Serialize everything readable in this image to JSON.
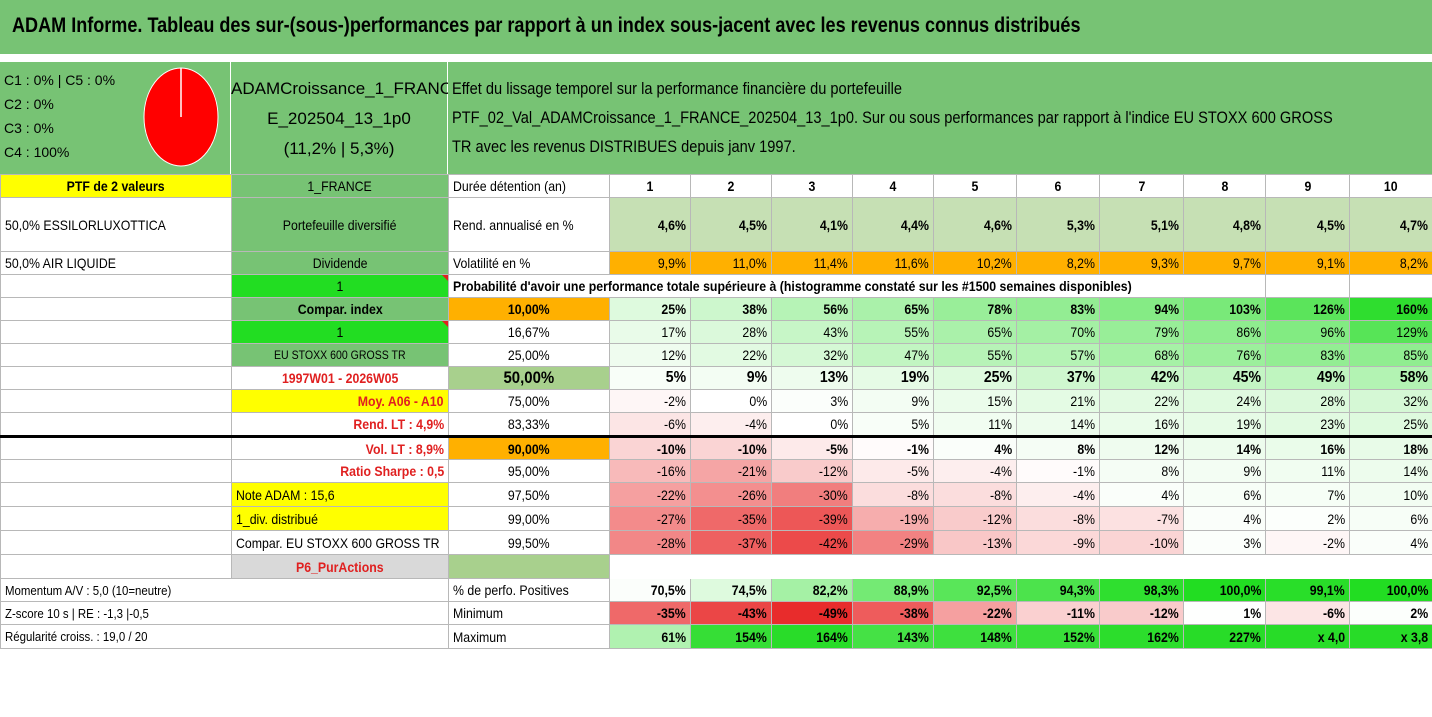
{
  "title": "ADAM Informe. Tableau des sur-(sous-)performances par rapport à un index sous-jacent avec les revenus connus distribués",
  "pie": {
    "labels": [
      "C1 : 0% | C5 : 0%",
      "C2 : 0%",
      "C3 : 0%",
      "C4 : 100%"
    ],
    "values": [
      0,
      0,
      0,
      100
    ],
    "color": "#ff0000"
  },
  "portfolio": {
    "name_line1": "ADAMCroissance_1_FRANC",
    "name_line2": "E_202504_13_1p0",
    "perf": "(11,2% | 5,3%)"
  },
  "description": {
    "line1": "Effet du lissage temporel sur la performance financière du portefeuille",
    "line2": "PTF_02_Val_ADAMCroissance_1_FRANCE_202504_13_1p0. Sur ou sous performances par rapport à l'indice EU STOXX 600 GROSS",
    "line3": "TR avec les revenus DISTRIBUES depuis janv 1997."
  },
  "left": {
    "ptf_label": "PTF de 2 valeurs",
    "holdings": [
      "50,0% ESSILORLUXOTTICA",
      "50,0% AIR LIQUIDE"
    ],
    "momentum": "Momentum A/V : 5,0 (10=neutre)",
    "zscore": "Z-score 10 s | RE : -1,3 |-0,5",
    "regularite": "Régularité croiss. : 19,0 / 20"
  },
  "mid": {
    "country": "1_FRANCE",
    "diversified": "Portefeuille diversifié",
    "dividend": "Dividende",
    "one_a": "1",
    "compar_index": "Compar. index",
    "one_b": "1",
    "index_name": "EU STOXX 600 GROSS TR",
    "period": "1997W01 - 2026W05",
    "moy": "Moy. A06 - A10",
    "rend_lt": "Rend. LT : 4,9%",
    "vol_lt": "Vol. LT : 8,9%",
    "sharpe": "Ratio Sharpe : 0,5",
    "note": "Note ADAM : 15,6",
    "div": "1_div. distribué",
    "compar": "Compar. EU STOXX 600 GROSS TR",
    "p6": "P6_PurActions"
  },
  "horizon_label": "Durée détention (an)",
  "horizons": [
    "1",
    "2",
    "3",
    "4",
    "5",
    "6",
    "7",
    "8",
    "9",
    "10"
  ],
  "rend_label": "Rend. annualisé en %",
  "rend": [
    "4,6%",
    "4,5%",
    "4,1%",
    "4,4%",
    "4,6%",
    "5,3%",
    "5,1%",
    "4,8%",
    "4,5%",
    "4,7%"
  ],
  "vol_label": "Volatilité en %",
  "vol": [
    "9,9%",
    "11,0%",
    "11,4%",
    "11,6%",
    "10,2%",
    "8,2%",
    "9,3%",
    "9,7%",
    "9,1%",
    "8,2%"
  ],
  "prob_title": "Probabilité d'avoir une performance totale supérieure à (histogramme constaté sur les #1500 semaines disponibles)",
  "quantiles": [
    {
      "q": "10,00%",
      "v": [
        "25%",
        "38%",
        "56%",
        "65%",
        "78%",
        "83%",
        "94%",
        "103%",
        "126%",
        "160%"
      ]
    },
    {
      "q": "16,67%",
      "v": [
        "17%",
        "28%",
        "43%",
        "55%",
        "65%",
        "70%",
        "79%",
        "86%",
        "96%",
        "129%"
      ]
    },
    {
      "q": "25,00%",
      "v": [
        "12%",
        "22%",
        "32%",
        "47%",
        "55%",
        "57%",
        "68%",
        "76%",
        "83%",
        "85%"
      ]
    },
    {
      "q": "50,00%",
      "v": [
        "5%",
        "9%",
        "13%",
        "19%",
        "25%",
        "37%",
        "42%",
        "45%",
        "49%",
        "58%"
      ]
    },
    {
      "q": "75,00%",
      "v": [
        "-2%",
        "0%",
        "3%",
        "9%",
        "15%",
        "21%",
        "22%",
        "24%",
        "28%",
        "32%"
      ]
    },
    {
      "q": "83,33%",
      "v": [
        "-6%",
        "-4%",
        "0%",
        "5%",
        "11%",
        "14%",
        "16%",
        "19%",
        "23%",
        "25%"
      ]
    },
    {
      "q": "90,00%",
      "v": [
        "-10%",
        "-10%",
        "-5%",
        "-1%",
        "4%",
        "8%",
        "12%",
        "14%",
        "16%",
        "18%"
      ]
    },
    {
      "q": "95,00%",
      "v": [
        "-16%",
        "-21%",
        "-12%",
        "-5%",
        "-4%",
        "-1%",
        "8%",
        "9%",
        "11%",
        "14%"
      ]
    },
    {
      "q": "97,50%",
      "v": [
        "-22%",
        "-26%",
        "-30%",
        "-8%",
        "-8%",
        "-4%",
        "4%",
        "6%",
        "7%",
        "10%"
      ]
    },
    {
      "q": "99,00%",
      "v": [
        "-27%",
        "-35%",
        "-39%",
        "-19%",
        "-12%",
        "-8%",
        "-7%",
        "4%",
        "2%",
        "6%"
      ]
    },
    {
      "q": "99,50%",
      "v": [
        "-28%",
        "-37%",
        "-42%",
        "-29%",
        "-13%",
        "-9%",
        "-10%",
        "3%",
        "-2%",
        "4%"
      ]
    }
  ],
  "pos_label": "% de perfo. Positives",
  "pos": [
    "70,5%",
    "74,5%",
    "82,2%",
    "88,9%",
    "92,5%",
    "94,3%",
    "98,3%",
    "100,0%",
    "99,1%",
    "100,0%"
  ],
  "min_label": "Minimum",
  "min": [
    "-35%",
    "-43%",
    "-49%",
    "-38%",
    "-22%",
    "-11%",
    "-12%",
    "1%",
    "-6%",
    "2%"
  ],
  "max_label": "Maximum",
  "max": [
    "61%",
    "154%",
    "164%",
    "143%",
    "148%",
    "152%",
    "162%",
    "227%",
    "x 4,0",
    "x 3,8"
  ],
  "colors": {
    "green": "#77c374",
    "light_green": "#a8d08d",
    "bright_green": "#22dd22",
    "yellow": "#ffff00",
    "orange": "#ffb000",
    "red": "#e02020"
  }
}
